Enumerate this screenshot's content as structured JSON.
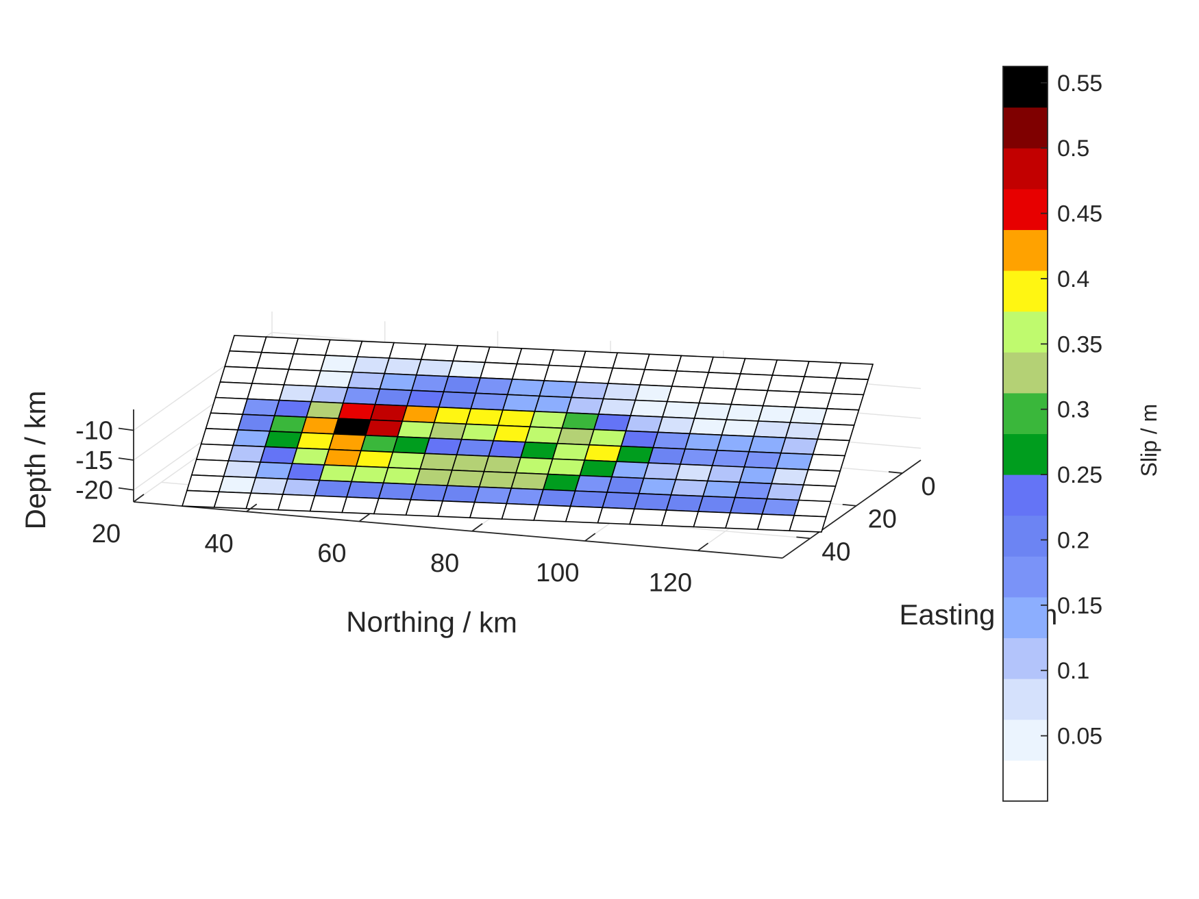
{
  "chart_data": {
    "type": "heatmap",
    "title": "",
    "xlabel": "Northing / km",
    "ylabel": "Easting / km",
    "zlabel": "Depth / km",
    "x_ticks": [
      20,
      40,
      60,
      80,
      100,
      120
    ],
    "y_ticks": [
      0,
      20,
      40
    ],
    "z_ticks": [
      -10,
      -15,
      -20
    ],
    "grid": true,
    "colorbar": {
      "label": "Slip / m",
      "ticks": [
        "0.05",
        "0.1",
        "0.15",
        "0.2",
        "0.25",
        "0.3",
        "0.35",
        "0.4",
        "0.45",
        "0.5",
        "0.55"
      ],
      "range": [
        0,
        0.5625
      ],
      "colors": [
        "#ffffff",
        "#ebf4fe",
        "#d5e1fc",
        "#b3c4fb",
        "#8caefe",
        "#7a93f8",
        "#6c84f3",
        "#6474f6",
        "#009d1e",
        "#3ab73b",
        "#b4d175",
        "#bffa6e",
        "#fff612",
        "#ffa200",
        "#e70000",
        "#c20000",
        "#7f0000",
        "#000000"
      ]
    },
    "slip_grid_m": [
      [
        0.0,
        0.0,
        0.0,
        0.0,
        0.0,
        0.0,
        0.0,
        0.0,
        0.0,
        0.0,
        0.0,
        0.0,
        0.0,
        0.0,
        0.0,
        0.0,
        0.0,
        0.0,
        0.0,
        0.0
      ],
      [
        0.0,
        0.0,
        0.0,
        0.047,
        0.078,
        0.078,
        0.078,
        0.047,
        0.0,
        0.0,
        0.0,
        0.0,
        0.0,
        0.0,
        0.0,
        0.0,
        0.0,
        0.0,
        0.0,
        0.0
      ],
      [
        0.0,
        0.0,
        0.0,
        0.047,
        0.109,
        0.141,
        0.172,
        0.203,
        0.172,
        0.141,
        0.141,
        0.109,
        0.078,
        0.047,
        0.0,
        0.0,
        0.0,
        0.0,
        0.0,
        0.0
      ],
      [
        0.0,
        0.0,
        0.078,
        0.109,
        0.172,
        0.203,
        0.234,
        0.203,
        0.172,
        0.141,
        0.141,
        0.109,
        0.078,
        0.047,
        0.047,
        0.047,
        0.047,
        0.047,
        0.047,
        0.0
      ],
      [
        0.0,
        0.172,
        0.234,
        0.328,
        0.453,
        0.484,
        0.422,
        0.391,
        0.391,
        0.391,
        0.359,
        0.297,
        0.234,
        0.109,
        0.078,
        0.047,
        0.047,
        0.078,
        0.078,
        0.0
      ],
      [
        0.0,
        0.203,
        0.297,
        0.422,
        0.547,
        0.484,
        0.359,
        0.328,
        0.359,
        0.391,
        0.359,
        0.328,
        0.359,
        0.234,
        0.172,
        0.141,
        0.141,
        0.141,
        0.109,
        0.0
      ],
      [
        0.0,
        0.141,
        0.266,
        0.391,
        0.422,
        0.297,
        0.266,
        0.234,
        0.203,
        0.234,
        0.266,
        0.359,
        0.391,
        0.266,
        0.203,
        0.172,
        0.172,
        0.172,
        0.141,
        0.0
      ],
      [
        0.0,
        0.109,
        0.234,
        0.359,
        0.422,
        0.391,
        0.359,
        0.328,
        0.328,
        0.328,
        0.359,
        0.359,
        0.266,
        0.141,
        0.109,
        0.078,
        0.109,
        0.141,
        0.078,
        0.0
      ],
      [
        0.0,
        0.078,
        0.141,
        0.234,
        0.359,
        0.359,
        0.359,
        0.328,
        0.328,
        0.328,
        0.328,
        0.266,
        0.172,
        0.203,
        0.141,
        0.109,
        0.141,
        0.172,
        0.109,
        0.0
      ],
      [
        0.0,
        0.047,
        0.078,
        0.109,
        0.203,
        0.203,
        0.203,
        0.203,
        0.203,
        0.172,
        0.172,
        0.203,
        0.203,
        0.203,
        0.203,
        0.203,
        0.203,
        0.203,
        0.172,
        0.0
      ],
      [
        0.0,
        0.0,
        0.0,
        0.0,
        0.0,
        0.0,
        0.0,
        0.0,
        0.0,
        0.0,
        0.0,
        0.0,
        0.0,
        0.0,
        0.0,
        0.0,
        0.0,
        0.0,
        0.0,
        0.0
      ]
    ]
  }
}
